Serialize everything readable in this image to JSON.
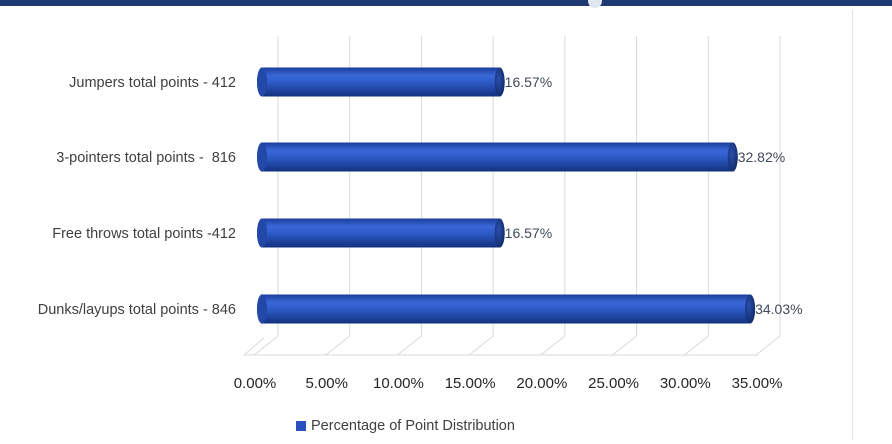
{
  "chart_data": {
    "type": "bar",
    "orientation": "horizontal",
    "title": "",
    "xlabel": "",
    "ylabel": "",
    "categories": [
      "Jumpers total points - 412",
      "3-pointers total points -  816",
      "Free throws total points -412",
      "Dunks/layups total points - 846"
    ],
    "series": [
      {
        "name": "Percentage of Point Distribution",
        "values": [
          16.57,
          32.82,
          16.57,
          34.03
        ],
        "value_labels": [
          "16.57%",
          "32.82%",
          "16.57%",
          "34.03%"
        ],
        "color": "#2a52be"
      }
    ],
    "xlim": [
      0,
      35
    ],
    "x_ticks": [
      0,
      5,
      10,
      15,
      20,
      25,
      30,
      35
    ],
    "x_tick_labels": [
      "0.00%",
      "5.00%",
      "10.00%",
      "15.00%",
      "20.00%",
      "25.00%",
      "30.00%",
      "35.00%"
    ],
    "grid": "vertical",
    "legend_position": "bottom-center",
    "style": "3d-cylinder"
  },
  "colors": {
    "bar": "#2a52be",
    "bar_dark": "#16307a",
    "grid": "#d9d9d9",
    "top_band": "#1f3a73"
  }
}
